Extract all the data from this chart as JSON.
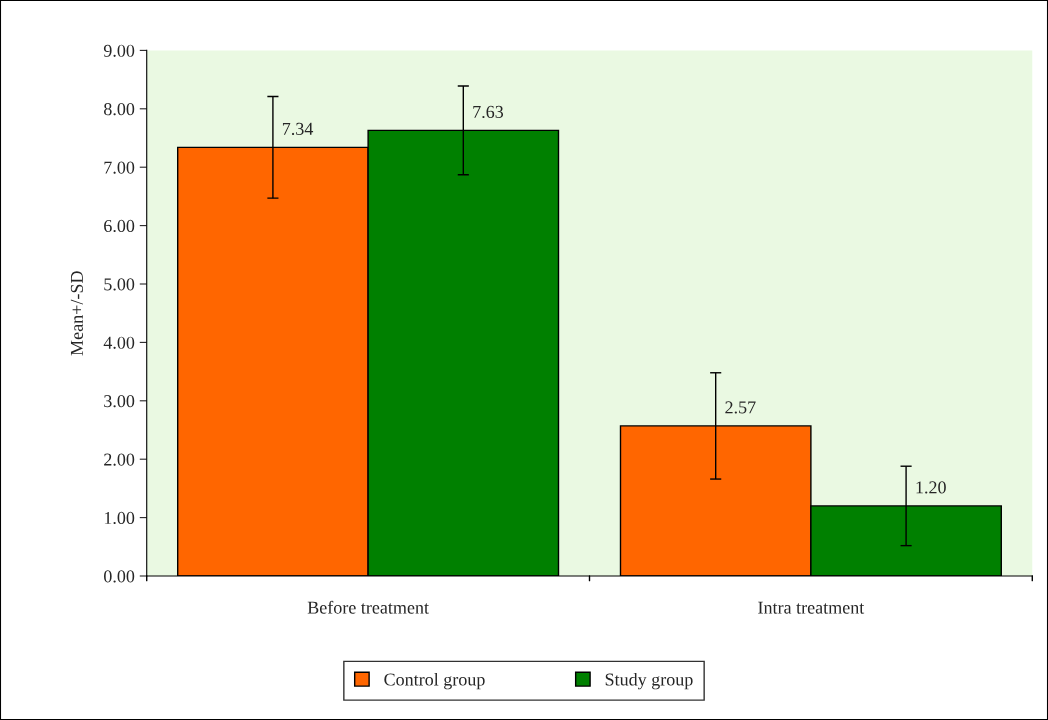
{
  "chart_data": {
    "type": "bar",
    "ylabel": "Mean+/-SD",
    "categories": [
      "Before treatment",
      "Intra treatment"
    ],
    "series": [
      {
        "name": "Control group",
        "color": "#ff6600",
        "values": [
          7.34,
          2.57
        ],
        "errors": [
          0.87,
          0.91
        ],
        "value_labels": [
          "7.34",
          "2.57"
        ]
      },
      {
        "name": "Study group",
        "color": "#008000",
        "values": [
          7.63,
          1.2
        ],
        "errors": [
          0.76,
          0.68
        ],
        "value_labels": [
          "7.63",
          "1.20"
        ]
      }
    ],
    "ylim": [
      0,
      9
    ],
    "yticks": [
      {
        "value": 0,
        "label": "0.00"
      },
      {
        "value": 1,
        "label": "1.00"
      },
      {
        "value": 2,
        "label": "2.00"
      },
      {
        "value": 3,
        "label": "3.00"
      },
      {
        "value": 4,
        "label": "4.00"
      },
      {
        "value": 5,
        "label": "5.00"
      },
      {
        "value": 6,
        "label": "6.00"
      },
      {
        "value": 7,
        "label": "7.00"
      },
      {
        "value": 8,
        "label": "8.00"
      },
      {
        "value": 9,
        "label": "9.00"
      }
    ],
    "grid": false,
    "legend": "bottom"
  }
}
